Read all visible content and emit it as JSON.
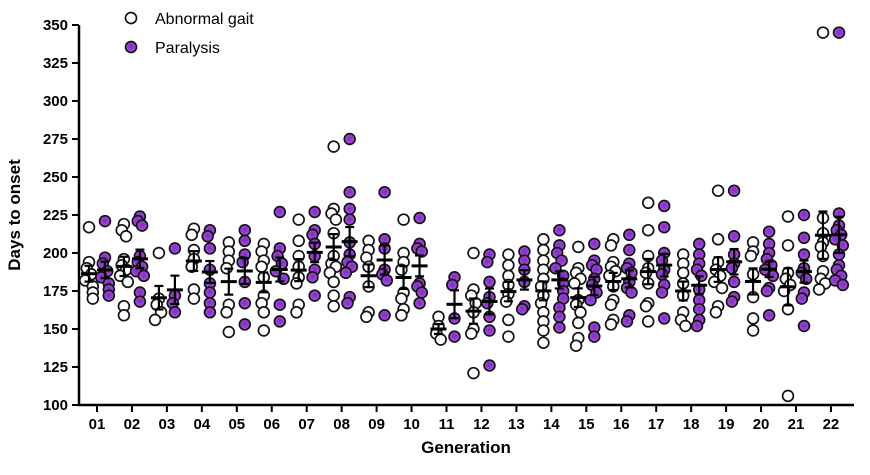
{
  "figure": {
    "legend": {
      "items": [
        {
          "label": "Abnormal gait",
          "marker": "open-circle",
          "fill": "#ffffff",
          "stroke": "#141414"
        },
        {
          "label": "Paralysis",
          "marker": "filled-circle",
          "fill": "#9a3fd8",
          "stroke": "#141414"
        }
      ]
    },
    "x_axis": {
      "label": "Generation"
    },
    "y_axis": {
      "label": "Days to onset"
    }
  },
  "colors": {
    "axis": "#000000",
    "error_bar": "#000000",
    "paralysis_purple_center": "#7d2cc0",
    "paralysis_purple_mid": "#9a3fd8",
    "paralysis_purple_edge": "#b06ae4",
    "open_marker_fill": "#ffffff",
    "marker_outline": "#141414",
    "background": "#ffffff"
  },
  "chart_data": {
    "type": "scatter",
    "title": "",
    "xlabel": "Generation",
    "ylabel": "Days to onset",
    "ylim": [
      100,
      350
    ],
    "y_ticks": [
      100,
      125,
      150,
      175,
      200,
      225,
      250,
      275,
      300,
      325,
      350
    ],
    "categories": [
      "01",
      "02",
      "03",
      "04",
      "05",
      "06",
      "07",
      "08",
      "09",
      "10",
      "11",
      "12",
      "13",
      "14",
      "15",
      "16",
      "17",
      "18",
      "19",
      "20",
      "21",
      "22"
    ],
    "grid": false,
    "legend_position": "top-left-inside",
    "error_bar_style": "mean ± SEM",
    "series": [
      {
        "name": "Abnormal gait",
        "marker": "open",
        "values_by_generation": [
          [
            217,
            194,
            190,
            186,
            182,
            178,
            174,
            170
          ],
          [
            219,
            215,
            211,
            196,
            192,
            189,
            185,
            181,
            165,
            159
          ],
          [
            200,
            170,
            166,
            161,
            156
          ],
          [
            216,
            212,
            202,
            196,
            191,
            176,
            170
          ],
          [
            207,
            201,
            195,
            190,
            166,
            161,
            148
          ],
          [
            206,
            201,
            195,
            191,
            184,
            172,
            167,
            161,
            149
          ],
          [
            222,
            208,
            198,
            191,
            184,
            180,
            166,
            161
          ],
          [
            270,
            229,
            226,
            222,
            213,
            198,
            193,
            191,
            187,
            181,
            172,
            165
          ],
          [
            208,
            202,
            197,
            191,
            178,
            161,
            158
          ],
          [
            222,
            200,
            194,
            189,
            174,
            170,
            163,
            159
          ],
          [
            158,
            152,
            147,
            143
          ],
          [
            200,
            176,
            172,
            167,
            161,
            150,
            147,
            121
          ],
          [
            199,
            192,
            185,
            179,
            173,
            168,
            156,
            145
          ],
          [
            209,
            202,
            195,
            189,
            183,
            178,
            172,
            167,
            161,
            155,
            149,
            141
          ],
          [
            204,
            190,
            187,
            183,
            180,
            169,
            166,
            161,
            154,
            144,
            139
          ],
          [
            209,
            205,
            194,
            191,
            188,
            185,
            178,
            169,
            166,
            156,
            153
          ],
          [
            233,
            215,
            198,
            190,
            187,
            180,
            167,
            165,
            155
          ],
          [
            199,
            193,
            187,
            180,
            172,
            161,
            156,
            152
          ],
          [
            241,
            209,
            194,
            189,
            185,
            181,
            177,
            165,
            161
          ],
          [
            207,
            201,
            198,
            186,
            171,
            157,
            149
          ],
          [
            224,
            205,
            187,
            183,
            179,
            175,
            163,
            106
          ],
          [
            345,
            223,
            213,
            207,
            204,
            198,
            188,
            183,
            180,
            176
          ]
        ]
      },
      {
        "name": "Paralysis",
        "marker": "filled",
        "values_by_generation": [
          [
            221,
            197,
            193,
            188,
            184,
            180,
            176,
            172
          ],
          [
            224,
            221,
            218,
            198,
            194,
            191,
            188,
            185,
            174,
            168
          ],
          [
            203,
            172,
            167,
            161
          ],
          [
            215,
            211,
            203,
            189,
            180,
            174,
            167,
            161
          ],
          [
            215,
            208,
            199,
            194,
            181,
            167,
            153
          ],
          [
            227,
            203,
            198,
            193,
            188,
            183,
            166,
            155
          ],
          [
            227,
            215,
            212,
            206,
            198,
            189,
            184,
            172
          ],
          [
            275,
            240,
            229,
            222,
            207,
            199,
            194,
            191,
            187,
            171,
            167
          ],
          [
            240,
            209,
            203,
            189,
            186,
            182,
            159
          ],
          [
            223,
            206,
            203,
            201,
            180,
            178,
            174,
            167
          ],
          [
            184,
            179,
            157,
            145
          ],
          [
            199,
            194,
            181,
            171,
            167,
            158,
            149,
            126
          ],
          [
            201,
            195,
            189,
            181,
            165,
            163
          ],
          [
            215,
            205,
            200,
            195,
            190,
            185,
            180,
            175,
            170,
            164,
            158,
            151
          ],
          [
            206,
            195,
            192,
            189,
            183,
            179,
            174,
            169,
            151,
            145
          ],
          [
            212,
            202,
            193,
            190,
            187,
            181,
            177,
            174,
            159,
            155
          ],
          [
            231,
            217,
            200,
            195,
            189,
            186,
            179,
            174,
            157
          ],
          [
            206,
            199,
            193,
            189,
            185,
            176,
            169,
            163,
            156,
            152
          ],
          [
            241,
            211,
            199,
            193,
            190,
            181,
            171,
            168
          ],
          [
            214,
            206,
            200,
            196,
            192,
            189,
            185,
            177,
            175,
            159
          ],
          [
            225,
            210,
            199,
            190,
            187,
            183,
            174,
            170,
            152
          ],
          [
            345,
            226,
            218,
            215,
            212,
            209,
            205,
            199,
            192,
            189,
            185,
            182,
            179
          ]
        ]
      }
    ]
  }
}
